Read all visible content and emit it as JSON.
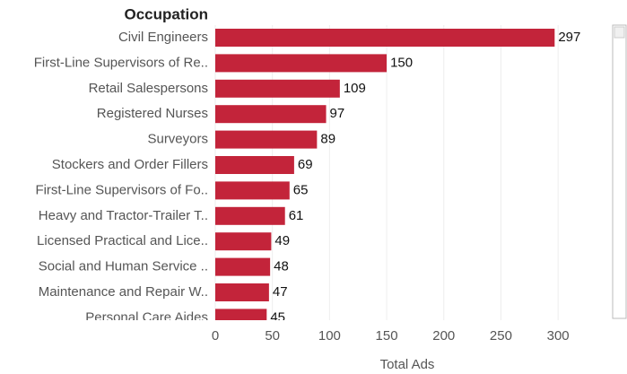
{
  "chart_data": {
    "type": "bar",
    "orientation": "horizontal",
    "category_header": "Occupation",
    "x_label": "Total Ads",
    "categories": [
      "Civil Engineers",
      "First-Line Supervisors of Re..",
      "Retail Salespersons",
      "Registered Nurses",
      "Surveyors",
      "Stockers and Order Fillers",
      "First-Line Supervisors of Fo..",
      "Heavy and Tractor-Trailer T..",
      "Licensed Practical and Lice..",
      "Social and Human Service ..",
      "Maintenance and Repair W..",
      "Personal Care Aides"
    ],
    "values": [
      297,
      150,
      109,
      97,
      89,
      69,
      65,
      61,
      49,
      48,
      47,
      45
    ],
    "color": "#c3243a",
    "xlim": [
      0,
      336
    ],
    "xticks": [
      0,
      50,
      100,
      150,
      200,
      250,
      300
    ],
    "grid": true
  }
}
